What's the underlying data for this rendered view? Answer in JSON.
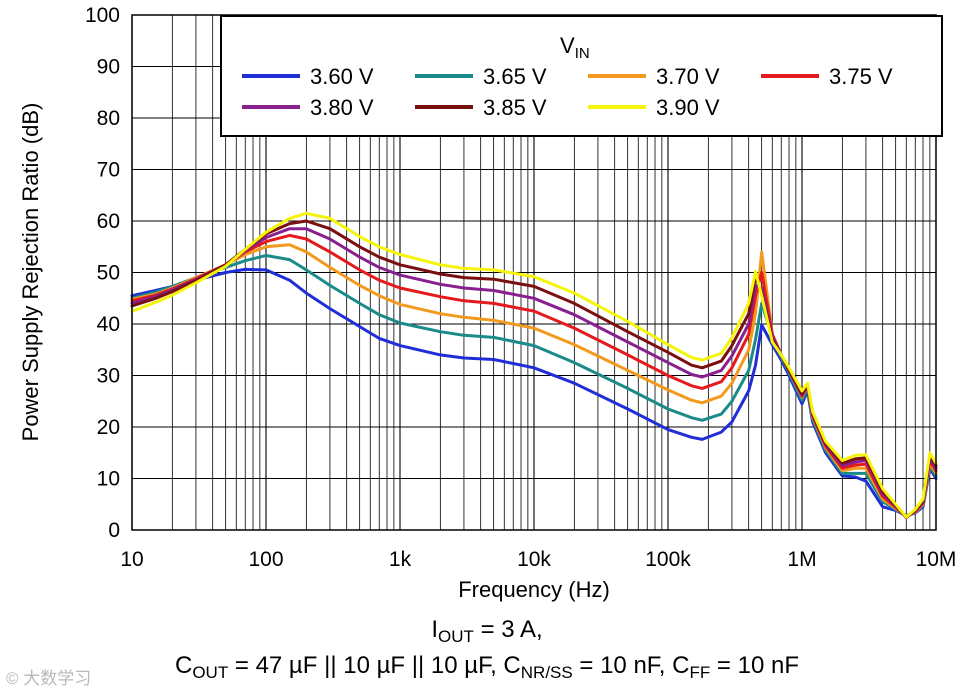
{
  "chart_data": {
    "type": "line",
    "xscale": "log",
    "xlabel": "Frequency (Hz)",
    "ylabel": "Power Supply Rejection Ratio (dB)",
    "xlim": [
      10,
      10000000
    ],
    "ylim": [
      0,
      100
    ],
    "xticks": [
      {
        "value": 10,
        "label": "10"
      },
      {
        "value": 100,
        "label": "100"
      },
      {
        "value": 1000,
        "label": "1k"
      },
      {
        "value": 10000,
        "label": "10k"
      },
      {
        "value": 100000,
        "label": "100k"
      },
      {
        "value": 1000000,
        "label": "1M"
      },
      {
        "value": 10000000,
        "label": "10M"
      }
    ],
    "yticks": [
      0,
      10,
      20,
      30,
      40,
      50,
      60,
      70,
      80,
      90,
      100
    ],
    "grid": true,
    "legend_title": {
      "main": "V",
      "sub": "IN"
    },
    "legend_position": "top-right",
    "series": [
      {
        "name": "3.60 V",
        "color": "#1f2ed6",
        "x": [
          10,
          15,
          20,
          30,
          50,
          70,
          100,
          150,
          200,
          300,
          500,
          700,
          1000,
          2000,
          3000,
          5000,
          10000,
          20000,
          50000,
          100000,
          150000,
          180000,
          250000,
          300000,
          400000,
          450000,
          500000,
          600000,
          700000,
          800000,
          1000000,
          1100000,
          1200000,
          1500000,
          2000000,
          2500000,
          3000000,
          4000000,
          5000000,
          6000000,
          7000000,
          8000000,
          9000000,
          10000000
        ],
        "y": [
          45.5,
          46.5,
          47.3,
          48.5,
          50,
          50.6,
          50.5,
          48.5,
          46,
          43,
          39.5,
          37.2,
          35.8,
          34,
          33.4,
          33.1,
          31.5,
          28.5,
          23.5,
          19.5,
          18,
          17.6,
          19,
          21,
          27,
          32,
          39.8,
          36,
          33,
          30,
          24.5,
          27,
          21,
          15,
          10.5,
          10.3,
          9.5,
          4.5,
          3.8,
          2.8,
          3.3,
          4.5,
          12,
          10
        ]
      },
      {
        "name": "3.65 V",
        "color": "#1b8a8a",
        "x": [
          10,
          15,
          20,
          30,
          50,
          70,
          100,
          150,
          200,
          300,
          500,
          700,
          1000,
          2000,
          3000,
          5000,
          10000,
          20000,
          50000,
          100000,
          150000,
          180000,
          250000,
          300000,
          400000,
          450000,
          500000,
          600000,
          700000,
          800000,
          1000000,
          1100000,
          1200000,
          1500000,
          2000000,
          2500000,
          3000000,
          4000000,
          5000000,
          6000000,
          7000000,
          8000000,
          9000000,
          10000000
        ],
        "y": [
          45,
          46.2,
          47.3,
          49,
          51,
          52.3,
          53.3,
          52.5,
          50.5,
          47.5,
          44,
          41.8,
          40.2,
          38.5,
          37.8,
          37.4,
          35.8,
          32.5,
          27.5,
          23.5,
          21.8,
          21.3,
          22.5,
          25,
          31,
          37,
          44,
          37.5,
          33.5,
          30.5,
          25.2,
          27.5,
          21.5,
          15.5,
          11,
          11,
          11,
          5.5,
          4,
          2.8,
          3.4,
          4.8,
          12.5,
          10.5
        ]
      },
      {
        "name": "3.70 V",
        "color": "#f29a1e",
        "x": [
          10,
          15,
          20,
          30,
          50,
          70,
          100,
          150,
          200,
          300,
          500,
          700,
          1000,
          2000,
          3000,
          5000,
          10000,
          20000,
          50000,
          100000,
          150000,
          180000,
          250000,
          300000,
          400000,
          450000,
          500000,
          600000,
          700000,
          800000,
          1000000,
          1100000,
          1200000,
          1500000,
          2000000,
          2500000,
          3000000,
          4000000,
          5000000,
          6000000,
          7000000,
          8000000,
          9000000,
          10000000
        ],
        "y": [
          44.8,
          45.8,
          47,
          49,
          51.5,
          53.5,
          55,
          55.4,
          54,
          51,
          47.5,
          45.5,
          43.8,
          42,
          41.3,
          40.7,
          39.2,
          36,
          31,
          27.2,
          25.2,
          24.7,
          26,
          28.5,
          35,
          42,
          54,
          38,
          34,
          31,
          25.8,
          28,
          22,
          16,
          11.5,
          12,
          12,
          6,
          4.2,
          2.7,
          3.5,
          5,
          13,
          11
        ]
      },
      {
        "name": "3.75 V",
        "color": "#e41a1c",
        "x": [
          10,
          15,
          20,
          30,
          50,
          70,
          100,
          150,
          200,
          300,
          500,
          700,
          1000,
          2000,
          3000,
          5000,
          10000,
          20000,
          50000,
          100000,
          150000,
          180000,
          250000,
          300000,
          400000,
          450000,
          500000,
          600000,
          700000,
          800000,
          1000000,
          1100000,
          1200000,
          1500000,
          2000000,
          2500000,
          3000000,
          4000000,
          5000000,
          6000000,
          7000000,
          8000000,
          9000000,
          10000000
        ],
        "y": [
          44.5,
          45.6,
          46.8,
          48.8,
          51.5,
          54,
          56,
          57.2,
          56.5,
          54,
          50.5,
          48.5,
          47,
          45.3,
          44.5,
          44,
          42.5,
          39.2,
          34,
          30,
          28,
          27.5,
          28.8,
          31.5,
          38,
          45.5,
          50,
          38,
          34,
          31,
          26,
          28,
          22.2,
          16.3,
          12,
          12.6,
          12.8,
          6.5,
          4.4,
          2.6,
          3.6,
          5.2,
          13.5,
          11.5
        ]
      },
      {
        "name": "3.80 V",
        "color": "#8a1f8f",
        "x": [
          10,
          15,
          20,
          30,
          50,
          70,
          100,
          150,
          200,
          300,
          500,
          700,
          1000,
          2000,
          3000,
          5000,
          10000,
          20000,
          50000,
          100000,
          150000,
          180000,
          250000,
          300000,
          400000,
          450000,
          500000,
          600000,
          700000,
          800000,
          1000000,
          1100000,
          1200000,
          1500000,
          2000000,
          2500000,
          3000000,
          4000000,
          5000000,
          6000000,
          7000000,
          8000000,
          9000000,
          10000000
        ],
        "y": [
          44,
          45.3,
          46.6,
          48.6,
          51.5,
          54.3,
          56.8,
          58.5,
          58.5,
          56.5,
          53,
          51,
          49.5,
          47.7,
          47,
          46.5,
          45,
          41.8,
          36.5,
          32.5,
          30.2,
          29.7,
          31,
          33.8,
          40,
          47.5,
          47,
          37.5,
          34,
          31,
          26.2,
          28,
          22.4,
          16.6,
          12.5,
          13.2,
          13.5,
          7,
          4.6,
          2.5,
          3.7,
          5.4,
          14,
          12
        ]
      },
      {
        "name": "3.85 V",
        "color": "#7a0f0f",
        "x": [
          10,
          15,
          20,
          30,
          50,
          70,
          100,
          150,
          200,
          300,
          500,
          700,
          1000,
          2000,
          3000,
          5000,
          10000,
          20000,
          50000,
          100000,
          150000,
          180000,
          250000,
          300000,
          400000,
          450000,
          500000,
          600000,
          700000,
          800000,
          1000000,
          1100000,
          1200000,
          1500000,
          2000000,
          2500000,
          3000000,
          4000000,
          5000000,
          6000000,
          7000000,
          8000000,
          9000000,
          10000000
        ],
        "y": [
          43.5,
          45,
          46.3,
          48.4,
          51.5,
          54.5,
          57.5,
          59.5,
          60,
          58.5,
          55,
          53,
          51.5,
          49.7,
          49,
          48.7,
          47.3,
          44,
          38.5,
          34.5,
          32,
          31.5,
          32.8,
          35.8,
          42,
          49.2,
          46,
          37,
          34,
          31,
          26.5,
          28.2,
          22.6,
          16.9,
          13,
          13.8,
          14,
          7.5,
          4.8,
          2.4,
          3.8,
          5.6,
          14.5,
          12.5
        ]
      },
      {
        "name": "3.90 V",
        "color": "#f5f50a",
        "x": [
          10,
          15,
          20,
          30,
          50,
          70,
          100,
          150,
          200,
          300,
          500,
          700,
          1000,
          2000,
          3000,
          5000,
          10000,
          20000,
          50000,
          100000,
          150000,
          180000,
          250000,
          300000,
          400000,
          450000,
          500000,
          600000,
          700000,
          800000,
          1000000,
          1100000,
          1200000,
          1500000,
          2000000,
          2500000,
          3000000,
          4000000,
          5000000,
          6000000,
          7000000,
          8000000,
          9000000,
          10000000
        ],
        "y": [
          42.5,
          44.2,
          45.6,
          48,
          51.2,
          54.5,
          57.8,
          60.5,
          61.5,
          60.5,
          57,
          55,
          53.5,
          51.5,
          50.8,
          50.5,
          49.2,
          46,
          40.5,
          36,
          33.5,
          33,
          34.3,
          37.3,
          44,
          50.2,
          45.5,
          36.5,
          34,
          31.5,
          27,
          28.5,
          23,
          17.2,
          13.5,
          14.5,
          14.6,
          8,
          5,
          2.5,
          4,
          6,
          15,
          13
        ]
      }
    ],
    "captions": {
      "line1": {
        "i": "I",
        "i_sub": "OUT",
        "value": " = 3 A,"
      },
      "line2": {
        "c": "C",
        "c_sub": "OUT",
        "c_val": " = 47 µF || 10 µF || 10 µF, ",
        "cnr": "C",
        "cnr_sub": "NR/SS",
        "cnr_val": " = 10 nF, ",
        "cff": "C",
        "cff_sub": "FF",
        "cff_val": " = 10 nF"
      }
    }
  },
  "watermark": "© 大数学习"
}
